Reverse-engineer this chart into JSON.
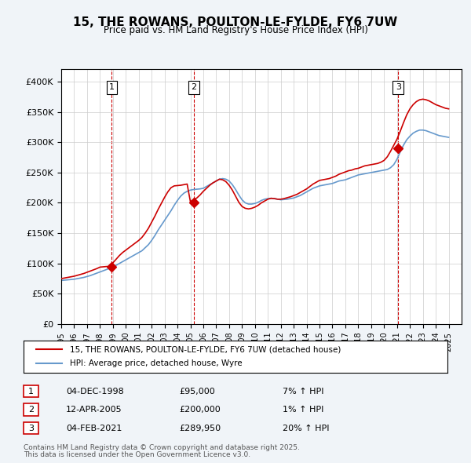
{
  "title": "15, THE ROWANS, POULTON-LE-FYLDE, FY6 7UW",
  "subtitle": "Price paid vs. HM Land Registry's House Price Index (HPI)",
  "legend_line1": "15, THE ROWANS, POULTON-LE-FYLDE, FY6 7UW (detached house)",
  "legend_line2": "HPI: Average price, detached house, Wyre",
  "footer1": "Contains HM Land Registry data © Crown copyright and database right 2025.",
  "footer2": "This data is licensed under the Open Government Licence v3.0.",
  "transactions": [
    {
      "num": 1,
      "date": "04-DEC-1998",
      "price": "£95,000",
      "hpi": "7% ↑ HPI",
      "x_year": 1998.92
    },
    {
      "num": 2,
      "date": "12-APR-2005",
      "price": "£200,000",
      "hpi": "1% ↑ HPI",
      "x_year": 2005.28
    },
    {
      "num": 3,
      "date": "04-FEB-2021",
      "price": "£289,950",
      "hpi": "20% ↑ HPI",
      "x_year": 2021.09
    }
  ],
  "transaction_prices": [
    95000,
    200000,
    289950
  ],
  "vline_years": [
    1998.92,
    2005.28,
    2021.09
  ],
  "vline_color": "#cc0000",
  "hpi_color": "#6699cc",
  "price_color": "#cc0000",
  "background_color": "#f0f4f8",
  "plot_bg": "#ffffff",
  "ylim": [
    0,
    420000
  ],
  "yticks": [
    0,
    50000,
    100000,
    150000,
    200000,
    250000,
    300000,
    350000,
    400000
  ],
  "xmin": 1995,
  "xmax": 2026,
  "xtick_years": [
    1995,
    1996,
    1997,
    1998,
    1999,
    2000,
    2001,
    2002,
    2003,
    2004,
    2005,
    2006,
    2007,
    2008,
    2009,
    2010,
    2011,
    2012,
    2013,
    2014,
    2015,
    2016,
    2017,
    2018,
    2019,
    2020,
    2021,
    2022,
    2023,
    2024,
    2025
  ],
  "hpi_data": {
    "years": [
      1995.0,
      1995.25,
      1995.5,
      1995.75,
      1996.0,
      1996.25,
      1996.5,
      1996.75,
      1997.0,
      1997.25,
      1997.5,
      1997.75,
      1998.0,
      1998.25,
      1998.5,
      1998.75,
      1999.0,
      1999.25,
      1999.5,
      1999.75,
      2000.0,
      2000.25,
      2000.5,
      2000.75,
      2001.0,
      2001.25,
      2001.5,
      2001.75,
      2002.0,
      2002.25,
      2002.5,
      2002.75,
      2003.0,
      2003.25,
      2003.5,
      2003.75,
      2004.0,
      2004.25,
      2004.5,
      2004.75,
      2005.0,
      2005.25,
      2005.5,
      2005.75,
      2006.0,
      2006.25,
      2006.5,
      2006.75,
      2007.0,
      2007.25,
      2007.5,
      2007.75,
      2008.0,
      2008.25,
      2008.5,
      2008.75,
      2009.0,
      2009.25,
      2009.5,
      2009.75,
      2010.0,
      2010.25,
      2010.5,
      2010.75,
      2011.0,
      2011.25,
      2011.5,
      2011.75,
      2012.0,
      2012.25,
      2012.5,
      2012.75,
      2013.0,
      2013.25,
      2013.5,
      2013.75,
      2014.0,
      2014.25,
      2014.5,
      2014.75,
      2015.0,
      2015.25,
      2015.5,
      2015.75,
      2016.0,
      2016.25,
      2016.5,
      2016.75,
      2017.0,
      2017.25,
      2017.5,
      2017.75,
      2018.0,
      2018.25,
      2018.5,
      2018.75,
      2019.0,
      2019.25,
      2019.5,
      2019.75,
      2020.0,
      2020.25,
      2020.5,
      2020.75,
      2021.0,
      2021.25,
      2021.5,
      2021.75,
      2022.0,
      2022.25,
      2022.5,
      2022.75,
      2023.0,
      2023.25,
      2023.5,
      2023.75,
      2024.0,
      2024.25,
      2024.5,
      2024.75,
      2025.0
    ],
    "values": [
      72000,
      72500,
      73000,
      73500,
      74000,
      75000,
      76000,
      77000,
      78500,
      80000,
      82000,
      84000,
      86000,
      88000,
      90000,
      92000,
      94000,
      97000,
      100000,
      103000,
      106000,
      109000,
      112000,
      115000,
      118000,
      121000,
      126000,
      131000,
      138000,
      146000,
      155000,
      163000,
      171000,
      179000,
      187000,
      196000,
      204000,
      211000,
      216000,
      219000,
      221000,
      222000,
      222500,
      223000,
      224000,
      227000,
      230000,
      233000,
      236000,
      239000,
      240000,
      239000,
      236000,
      230000,
      222000,
      213000,
      205000,
      200000,
      198000,
      198000,
      199000,
      201000,
      204000,
      206000,
      207000,
      207500,
      207000,
      206000,
      205000,
      205500,
      206000,
      207000,
      208000,
      210000,
      212000,
      215000,
      218000,
      221000,
      224000,
      226000,
      228000,
      229000,
      230000,
      231000,
      232000,
      234000,
      236000,
      237000,
      238000,
      240000,
      242000,
      244000,
      246000,
      247000,
      248000,
      249000,
      250000,
      251000,
      252000,
      253000,
      254000,
      255000,
      258000,
      263000,
      272000,
      284000,
      295000,
      304000,
      310000,
      315000,
      318000,
      320000,
      320000,
      319000,
      317000,
      315000,
      313000,
      311000,
      310000,
      309000,
      308000
    ]
  },
  "price_series": {
    "years": [
      1995.0,
      1995.25,
      1995.5,
      1995.75,
      1996.0,
      1996.25,
      1996.5,
      1996.75,
      1997.0,
      1997.25,
      1997.5,
      1997.75,
      1998.0,
      1998.25,
      1998.5,
      1998.75,
      1999.0,
      1999.25,
      1999.5,
      1999.75,
      2000.0,
      2000.25,
      2000.5,
      2000.75,
      2001.0,
      2001.25,
      2001.5,
      2001.75,
      2002.0,
      2002.25,
      2002.5,
      2002.75,
      2003.0,
      2003.25,
      2003.5,
      2003.75,
      2004.0,
      2004.25,
      2004.5,
      2004.75,
      2005.0,
      2005.25,
      2005.5,
      2005.75,
      2006.0,
      2006.25,
      2006.5,
      2006.75,
      2007.0,
      2007.25,
      2007.5,
      2007.75,
      2008.0,
      2008.25,
      2008.5,
      2008.75,
      2009.0,
      2009.25,
      2009.5,
      2009.75,
      2010.0,
      2010.25,
      2010.5,
      2010.75,
      2011.0,
      2011.25,
      2011.5,
      2011.75,
      2012.0,
      2012.25,
      2012.5,
      2012.75,
      2013.0,
      2013.25,
      2013.5,
      2013.75,
      2014.0,
      2014.25,
      2014.5,
      2014.75,
      2015.0,
      2015.25,
      2015.5,
      2015.75,
      2016.0,
      2016.25,
      2016.5,
      2016.75,
      2017.0,
      2017.25,
      2017.5,
      2017.75,
      2018.0,
      2018.25,
      2018.5,
      2018.75,
      2019.0,
      2019.25,
      2019.5,
      2019.75,
      2020.0,
      2020.25,
      2020.5,
      2020.75,
      2021.0,
      2021.25,
      2021.5,
      2021.75,
      2022.0,
      2022.25,
      2022.5,
      2022.75,
      2023.0,
      2023.25,
      2023.5,
      2023.75,
      2024.0,
      2024.25,
      2024.5,
      2024.75,
      2025.0
    ],
    "values": [
      75000,
      76000,
      77000,
      78000,
      79000,
      80500,
      82000,
      83500,
      85500,
      87500,
      89500,
      91500,
      94000,
      94500,
      95000,
      95000,
      101000,
      107000,
      113000,
      118000,
      122000,
      126000,
      130000,
      134000,
      138000,
      143000,
      150000,
      158000,
      168000,
      178000,
      189000,
      199000,
      209000,
      218000,
      225000,
      228000,
      228500,
      229000,
      230000,
      231000,
      202000,
      205000,
      208000,
      213000,
      219000,
      224000,
      229000,
      233000,
      236000,
      239000,
      238000,
      235000,
      229000,
      221000,
      211000,
      201000,
      194000,
      191000,
      190000,
      191000,
      193000,
      196000,
      200000,
      203000,
      206000,
      207500,
      207000,
      206000,
      206000,
      207000,
      208500,
      210000,
      212000,
      214000,
      217000,
      220000,
      223000,
      227000,
      231000,
      234000,
      237000,
      238000,
      239000,
      240000,
      242000,
      244000,
      247000,
      249000,
      251000,
      253000,
      254000,
      256000,
      257000,
      259000,
      261000,
      262000,
      263000,
      264000,
      265000,
      267000,
      270000,
      276000,
      285000,
      295000,
      305000,
      318000,
      332000,
      345000,
      355000,
      362000,
      367000,
      370000,
      371000,
      370000,
      368000,
      365000,
      362000,
      360000,
      358000,
      356000,
      355000
    ]
  }
}
